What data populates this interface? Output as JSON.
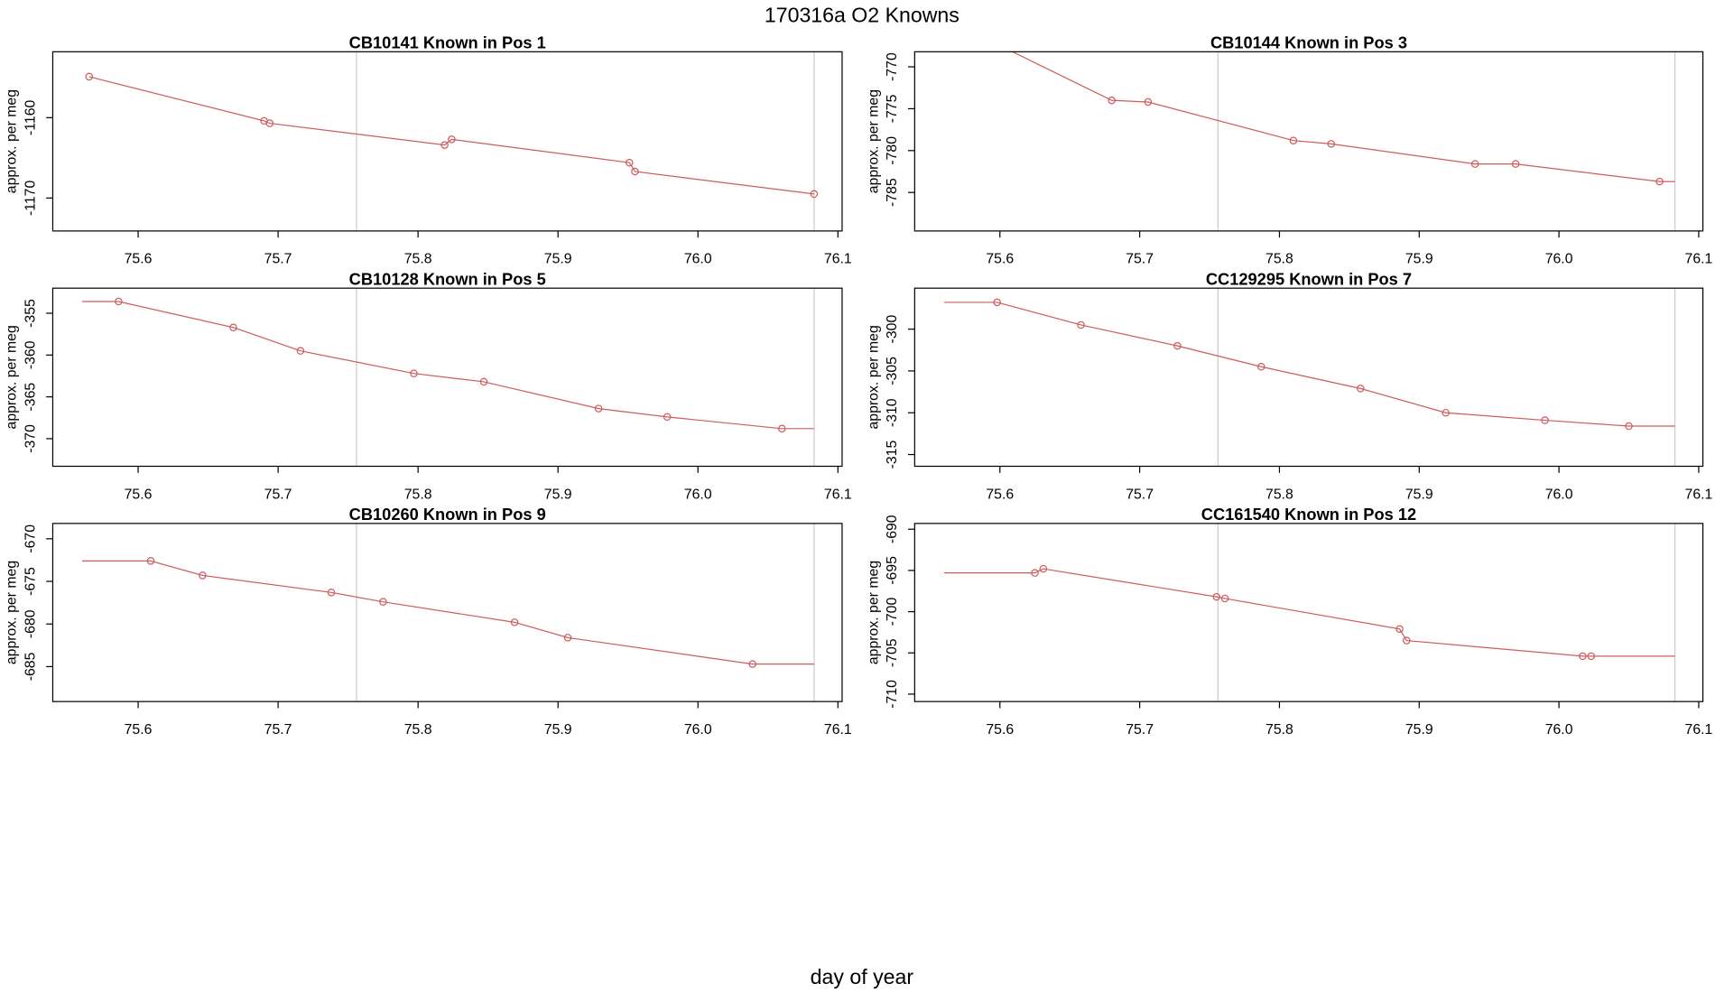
{
  "figure": {
    "title": "170316a   O2 Knowns",
    "xlabel": "day of year"
  },
  "chart_data": [
    {
      "type": "line",
      "title": "CB10141    Known in Pos 1",
      "ylabel": "approx. per meg",
      "color": "#cd5c5c",
      "xlim": [
        75.539,
        76.103
      ],
      "xticks": [
        75.6,
        75.7,
        75.8,
        75.9,
        {
          "value": 76,
          "label": "76.0"
        },
        76.1
      ],
      "ylim": [
        -1174.1,
        -1151.8
      ],
      "yticks": [
        -1160,
        -1170
      ],
      "vlines": [
        75.756,
        76.083
      ],
      "x": [
        75.565,
        75.69,
        75.694,
        75.819,
        75.824,
        75.951,
        75.955,
        76.083
      ],
      "values": [
        -1154.9,
        -1160.4,
        -1160.7,
        -1163.4,
        -1162.7,
        -1165.6,
        -1166.7,
        -1169.5
      ],
      "markers": [
        true,
        true,
        true,
        true,
        true,
        true,
        true,
        true
      ]
    },
    {
      "type": "line",
      "title": "CB10144    Known in Pos 3",
      "ylabel": "approx. per meg",
      "color": "#cd5c5c",
      "xlim": [
        75.539,
        76.103
      ],
      "xticks": [
        75.6,
        75.7,
        75.8,
        75.9,
        {
          "value": 76,
          "label": "76.0"
        },
        76.1
      ],
      "ylim": [
        -789.6,
        -768.2
      ],
      "yticks": [
        -770,
        -775,
        -780,
        -785
      ],
      "vlines": [
        75.756,
        76.083
      ],
      "x": [
        75.56,
        75.68,
        75.706,
        75.81,
        75.837,
        75.94,
        75.969,
        76.072,
        76.083
      ],
      "values": [
        -764.2,
        -774.0,
        -774.2,
        -778.8,
        -779.2,
        -781.6,
        -781.6,
        -783.7,
        -783.7
      ],
      "markers": [
        false,
        true,
        true,
        true,
        true,
        true,
        true,
        true,
        false
      ]
    },
    {
      "type": "line",
      "title": "CB10128    Known in Pos 5",
      "ylabel": "approx. per meg",
      "color": "#cd5c5c",
      "xlim": [
        75.539,
        76.103
      ],
      "xticks": [
        75.6,
        75.7,
        75.8,
        75.9,
        {
          "value": 76,
          "label": "76.0"
        },
        76.1
      ],
      "ylim": [
        -373.3,
        -352.0
      ],
      "yticks": [
        -355,
        -360,
        -365,
        -370
      ],
      "vlines": [
        75.756,
        76.083
      ],
      "x": [
        75.56,
        75.586,
        75.668,
        75.716,
        75.797,
        75.847,
        75.929,
        75.978,
        76.06,
        76.083
      ],
      "values": [
        -353.6,
        -353.6,
        -356.7,
        -359.5,
        -362.2,
        -363.2,
        -366.4,
        -367.4,
        -368.8,
        -368.8
      ],
      "markers": [
        false,
        true,
        true,
        true,
        true,
        true,
        true,
        true,
        true,
        false
      ]
    },
    {
      "type": "line",
      "title": "CC129295    Known in Pos 7",
      "ylabel": "approx. per meg",
      "color": "#cd5c5c",
      "xlim": [
        75.539,
        76.103
      ],
      "xticks": [
        75.6,
        75.7,
        75.8,
        75.9,
        {
          "value": 76,
          "label": "76.0"
        },
        76.1
      ],
      "ylim": [
        -316.4,
        -295.1
      ],
      "yticks": [
        -300,
        -305,
        -310,
        -315
      ],
      "vlines": [
        75.756,
        76.083
      ],
      "x": [
        75.56,
        75.598,
        75.658,
        75.727,
        75.787,
        75.858,
        75.919,
        75.99,
        76.05,
        76.083
      ],
      "values": [
        -296.8,
        -296.8,
        -299.5,
        -302.0,
        -304.5,
        -307.1,
        -310.0,
        -310.9,
        -311.6,
        -311.6
      ],
      "markers": [
        false,
        true,
        true,
        true,
        true,
        true,
        true,
        true,
        true,
        false
      ]
    },
    {
      "type": "line",
      "title": "CB10260    Known in Pos 9",
      "ylabel": "approx. per meg",
      "color": "#cd5c5c",
      "xlim": [
        75.539,
        76.103
      ],
      "xticks": [
        75.6,
        75.7,
        75.8,
        75.9,
        {
          "value": 76,
          "label": "76.0"
        },
        76.1
      ],
      "ylim": [
        -689.1,
        -668.2
      ],
      "yticks": [
        -670,
        -675,
        -680,
        -685
      ],
      "vlines": [
        75.756,
        76.083
      ],
      "x": [
        75.56,
        75.609,
        75.646,
        75.738,
        75.775,
        75.869,
        75.907,
        76.039,
        76.083
      ],
      "values": [
        -672.6,
        -672.6,
        -674.3,
        -676.3,
        -677.4,
        -679.8,
        -681.6,
        -684.7,
        -684.7
      ],
      "markers": [
        false,
        true,
        true,
        true,
        true,
        true,
        true,
        true,
        false
      ]
    },
    {
      "type": "line",
      "title": "CC161540    Known in Pos 12",
      "ylabel": "approx. per meg",
      "color": "#cd5c5c",
      "xlim": [
        75.539,
        76.103
      ],
      "xticks": [
        75.6,
        75.7,
        75.8,
        75.9,
        {
          "value": 76,
          "label": "76.0"
        },
        76.1
      ],
      "ylim": [
        -710.9,
        -689.3
      ],
      "yticks": [
        -690,
        -695,
        -700,
        -705,
        -710
      ],
      "vlines": [
        75.756,
        76.083
      ],
      "x": [
        75.56,
        75.625,
        75.631,
        75.755,
        75.761,
        75.886,
        75.891,
        76.017,
        76.023,
        76.083
      ],
      "values": [
        -695.3,
        -695.3,
        -694.8,
        -698.2,
        -698.4,
        -702.1,
        -703.5,
        -705.4,
        -705.4,
        -705.4
      ],
      "markers": [
        false,
        true,
        true,
        true,
        true,
        true,
        true,
        true,
        true,
        false
      ]
    }
  ]
}
